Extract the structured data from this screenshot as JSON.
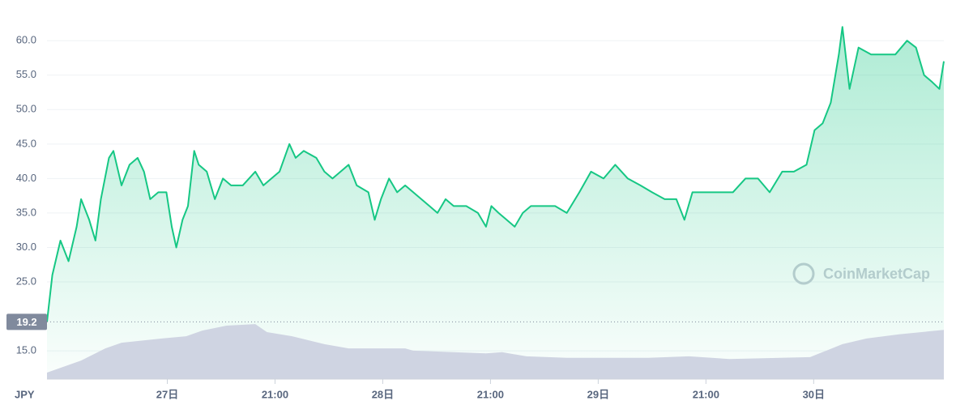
{
  "chart_data": {
    "type": "line",
    "unit": "JPY",
    "watermark": "CoinMarketCap",
    "color": "#16c784",
    "volume_color": "#cfd4e2",
    "grid": true,
    "reference_line": 19.2,
    "xlim": [
      0,
      99.9
    ],
    "xticks": [
      {
        "value": 13.4,
        "label": "27日"
      },
      {
        "value": 25.4,
        "label": "21:00"
      },
      {
        "value": 37.4,
        "label": "28日"
      },
      {
        "value": 49.4,
        "label": "21:00"
      },
      {
        "value": 61.4,
        "label": "29日"
      },
      {
        "value": 73.4,
        "label": "21:00"
      },
      {
        "value": 85.4,
        "label": "30日"
      }
    ],
    "ylim": [
      10.9,
      65.9
    ],
    "yticks": [
      {
        "value": 15,
        "label": "15.0"
      },
      {
        "value": 25,
        "label": "25.0"
      },
      {
        "value": 30,
        "label": "30.0"
      },
      {
        "value": 35,
        "label": "35.0"
      },
      {
        "value": 40,
        "label": "40.0"
      },
      {
        "value": 45,
        "label": "45.0"
      },
      {
        "value": 50,
        "label": "50.0"
      },
      {
        "value": 55,
        "label": "55.0"
      },
      {
        "value": 60,
        "label": "60.0"
      }
    ],
    "x": [
      0,
      0.6,
      1.5,
      2.4,
      3.3,
      3.8,
      4.7,
      5.4,
      6.0,
      6.9,
      7.4,
      8.3,
      9.2,
      10.1,
      10.8,
      11.5,
      12.4,
      13.3,
      13.9,
      14.4,
      15.1,
      15.7,
      16.4,
      16.9,
      17.8,
      18.7,
      19.6,
      20.5,
      21.8,
      23.2,
      24.1,
      25.0,
      25.9,
      27.0,
      27.7,
      28.6,
      30.0,
      30.9,
      31.8,
      32.7,
      33.6,
      34.5,
      35.8,
      36.5,
      37.2,
      38.1,
      39.0,
      39.9,
      40.8,
      41.7,
      42.6,
      43.5,
      44.4,
      45.3,
      46.7,
      48.0,
      48.9,
      49.5,
      50.3,
      51.2,
      52.1,
      53.0,
      53.9,
      55.2,
      56.6,
      57.9,
      59.3,
      60.6,
      62.0,
      63.3,
      64.7,
      66.1,
      67.4,
      68.8,
      70.1,
      71.0,
      71.9,
      72.8,
      74.2,
      75.5,
      76.4,
      77.8,
      79.2,
      80.5,
      81.9,
      83.2,
      84.6,
      85.5,
      86.4,
      87.3,
      88.2,
      88.6,
      89.4,
      90.4,
      91.8,
      93.1,
      94.5,
      95.8,
      96.8,
      97.7,
      98.6,
      99.4,
      99.9
    ],
    "values": [
      19.2,
      26,
      31,
      28,
      33,
      37,
      34,
      31,
      37,
      43,
      44,
      39,
      42,
      43,
      41,
      37,
      38,
      38,
      33,
      30,
      34,
      36,
      44,
      42,
      41,
      37,
      40,
      39,
      39,
      41,
      39,
      40,
      41,
      45,
      43,
      44,
      43,
      41,
      40,
      41,
      42,
      39,
      38,
      34,
      37,
      40,
      38,
      39,
      38,
      37,
      36,
      35,
      37,
      36,
      36,
      35,
      33,
      36,
      35,
      34,
      33,
      35,
      36,
      36,
      36,
      35,
      38,
      41,
      40,
      42,
      40,
      39,
      38,
      37,
      37,
      34,
      38,
      38,
      38,
      38,
      38,
      40,
      40,
      38,
      41,
      41,
      42,
      47,
      48,
      51,
      58,
      62,
      53,
      59,
      58,
      58,
      58,
      60,
      59,
      55,
      54,
      53,
      57
    ],
    "volume": {
      "y2lim": [
        0,
        100
      ],
      "x": [
        0,
        3.8,
        6.5,
        8.3,
        12.8,
        15.5,
        17.3,
        20.0,
        23.2,
        24.5,
        27.3,
        30.9,
        33.6,
        39.9,
        40.8,
        48.9,
        50.7,
        53.4,
        57.9,
        67.0,
        71.5,
        76.0,
        85.0,
        88.6,
        91.3,
        94.9,
        99.9
      ],
      "values": [
        1.7,
        4.9,
        8.1,
        9.6,
        10.7,
        11.3,
        12.8,
        14.1,
        14.5,
        12.4,
        11.3,
        9.2,
        8.1,
        8.1,
        7.5,
        6.8,
        7.1,
        6.0,
        5.6,
        5.6,
        6.0,
        5.3,
        5.8,
        9.2,
        10.7,
        11.8,
        13.0
      ]
    }
  }
}
